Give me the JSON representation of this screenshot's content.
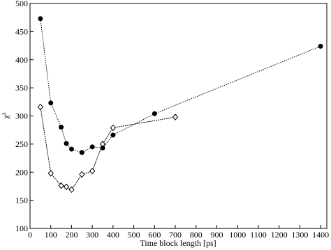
{
  "chart_data": {
    "type": "line",
    "xlabel": "Time block length [ps]",
    "ylabel": "χ²",
    "xlim": [
      0,
      1430
    ],
    "ylim": [
      100,
      500
    ],
    "xticks": [
      0,
      100,
      200,
      300,
      400,
      500,
      600,
      700,
      800,
      900,
      1000,
      1100,
      1200,
      1300,
      1400
    ],
    "yticks": [
      100,
      150,
      200,
      250,
      300,
      350,
      400,
      450,
      500
    ],
    "series": [
      {
        "marker": "circle",
        "color": "#000000",
        "x": [
          50,
          100,
          150,
          175,
          200,
          250,
          300,
          350,
          400,
          600,
          1400
        ],
        "values": [
          473,
          323,
          280,
          251,
          241,
          235,
          245,
          243,
          266,
          304,
          424
        ]
      },
      {
        "marker": "diamond",
        "color": "#000000",
        "x": [
          50,
          100,
          150,
          175,
          200,
          250,
          300,
          350,
          400,
          700
        ],
        "values": [
          316,
          198,
          176,
          174,
          169,
          196,
          202,
          250,
          279,
          298
        ]
      }
    ]
  }
}
